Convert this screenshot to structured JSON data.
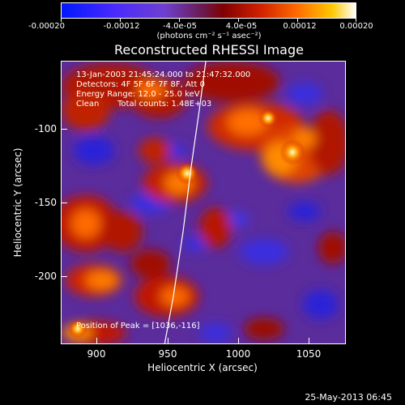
{
  "colorbar": {
    "tick_labels": [
      "-0.00020",
      "-0.00012",
      "-4.0e-05",
      "4.0e-05",
      "0.00012",
      "0.00020"
    ],
    "units": "(photons cm⁻² s⁻¹ asec⁻²)",
    "colors": [
      "#0018ff",
      "#4a2aff",
      "#6e40d0",
      "#6a1a50",
      "#800000",
      "#d22200",
      "#ff6a00",
      "#ffc800",
      "#ffffff"
    ]
  },
  "title": "Reconstructed RHESSI Image",
  "info": {
    "time_range": "13-Jan-2003 21:45:24.000 to 21:47:32.000",
    "detectors": "Detectors: 4F 5F 6F 7F 8F, Att 0",
    "energy": "Energy Range: 12.0 - 25.0 keV",
    "algorithm": "Clean",
    "counts": "Total counts: 1.48E+03",
    "peak": "Position of Peak = [1036,-116]"
  },
  "axes": {
    "xlabel": "Heliocentric X (arcsec)",
    "ylabel": "Heliocentric Y (arcsec)",
    "x_ticks": [
      "900",
      "950",
      "1000",
      "1050"
    ],
    "y_ticks": [
      "-100",
      "-150",
      "-200"
    ]
  },
  "footer": "25-May-2013 06:45"
}
